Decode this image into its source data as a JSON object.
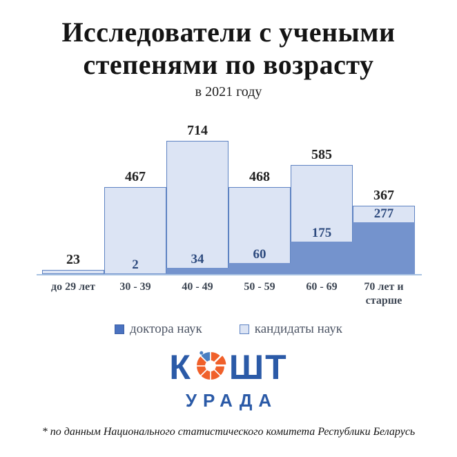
{
  "title": {
    "line1": "Исследователи с учеными",
    "line2": "степенями по возрасту",
    "subtitle": "в 2021 году"
  },
  "chart_data": {
    "type": "bar",
    "stacked": true,
    "title": "Исследователи с учеными степенями по возрасту в 2021 году",
    "categories": [
      "до 29 лет",
      "30 - 39",
      "40 - 49",
      "50 - 59",
      "60 - 69",
      "70 лет и старше"
    ],
    "totals": [
      23,
      467,
      714,
      468,
      585,
      367
    ],
    "total_labels": [
      "23",
      "467",
      "714",
      "468",
      "585",
      "367"
    ],
    "series": [
      {
        "name": "доктора наук",
        "color": "#7493cd",
        "values": [
          0,
          2,
          34,
          60,
          175,
          277
        ],
        "value_labels": [
          "",
          "2",
          "34",
          "60",
          "175",
          "277"
        ]
      },
      {
        "name": "кандидаты наук",
        "color": "#dce4f4",
        "values": [
          23,
          465,
          680,
          408,
          410,
          90
        ]
      }
    ],
    "ylim": [
      0,
      740
    ],
    "grid": false,
    "legend_position": "bottom",
    "bar_border_color": "#5d82c2",
    "axis_line_color": "#a8c2e2",
    "total_label_color": "#212121",
    "inner_label_color": "#2d4a7e",
    "category_label_color": "#3d4653"
  },
  "legend": {
    "items": [
      {
        "label": "доктора наук",
        "swatch_color": "#4a72c0"
      },
      {
        "label": "кандидаты наук",
        "swatch_color": "#dce4f4"
      }
    ]
  },
  "logo": {
    "part1": "К",
    "part2": "ШТ",
    "line2": "УРАДА",
    "text_color": "#2b5aa7",
    "icon_orange": "#f0602a",
    "icon_blue": "#4a7fc1"
  },
  "footer": {
    "note": "* по данным Национального статистического комитета Республики Беларусь"
  }
}
